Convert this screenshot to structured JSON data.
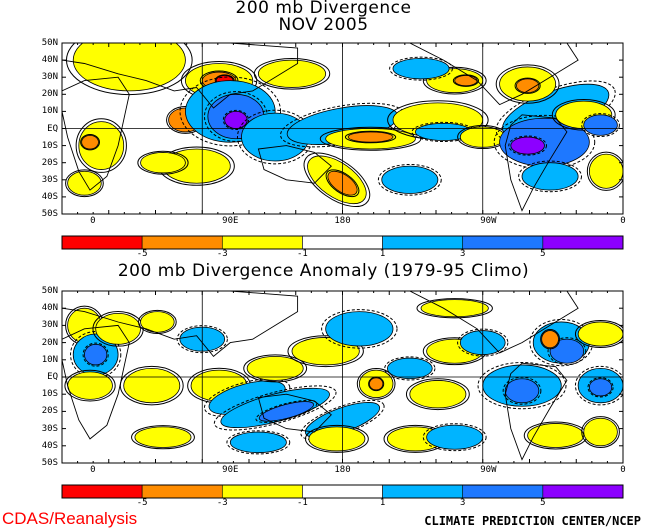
{
  "panel_top": {
    "title_line1": "200 mb Divergence",
    "title_line2": "NOV 2005"
  },
  "panel_bottom": {
    "title": "200 mb Divergence Anomaly (1979-95 Climo)"
  },
  "latitude_labels": [
    "50N",
    "40N",
    "30N",
    "20N",
    "10N",
    "EQ",
    "10S",
    "20S",
    "30S",
    "40S",
    "50S"
  ],
  "longitude_labels": [
    "0",
    "90E",
    "180",
    "90W",
    "0"
  ],
  "colorbar": {
    "tick_labels": [
      "-5",
      "-3",
      "-1",
      "1",
      "3",
      "5"
    ],
    "colors": [
      "#ff0000",
      "#ff8c00",
      "#ffff00",
      "#ffffff",
      "#00b4ff",
      "#1e78ff",
      "#8c00ff"
    ]
  },
  "footer": {
    "source": "CDAS/Reanalysis",
    "credit": "CLIMATE PREDICTION CENTER/NCEP"
  },
  "colors": {
    "red": "#ff0000",
    "orange": "#ff8c00",
    "yellow": "#ffff00",
    "light_blue": "#00b4ff",
    "blue": "#1e78ff",
    "purple": "#8c00ff"
  }
}
